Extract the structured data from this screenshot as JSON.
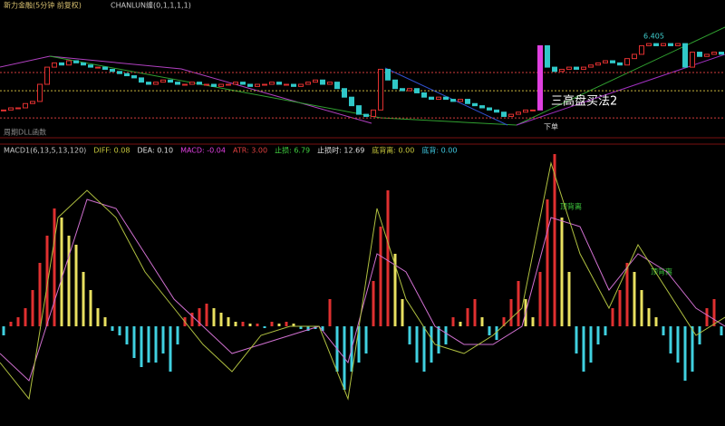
{
  "header": {
    "title": "新力金融(5分钟 前复权)",
    "indicator": "CHANLUN缠(0,1,1,1,1)"
  },
  "main_panel": {
    "price_range": [
      5.9,
      6.45
    ],
    "levels": [
      {
        "value": 6.175,
        "color": "#d23c3c"
      },
      {
        "value": 6.09,
        "color": "#c8b43c"
      },
      {
        "value": 5.963,
        "color": "#d23c3c"
      }
    ],
    "closes": [
      6.0,
      6.01,
      6.01,
      6.03,
      6.04,
      6.12,
      6.2,
      6.22,
      6.21,
      6.23,
      6.22,
      6.21,
      6.2,
      6.2,
      6.19,
      6.18,
      6.17,
      6.16,
      6.15,
      6.13,
      6.12,
      6.13,
      6.14,
      6.13,
      6.12,
      6.12,
      6.13,
      6.12,
      6.12,
      6.11,
      6.12,
      6.12,
      6.13,
      6.12,
      6.11,
      6.12,
      6.12,
      6.13,
      6.12,
      6.12,
      6.11,
      6.12,
      6.13,
      6.14,
      6.12,
      6.13,
      6.1,
      6.06,
      6.02,
      5.98,
      5.97,
      6.0,
      6.19,
      6.14,
      6.1,
      6.09,
      6.1,
      6.08,
      6.06,
      6.05,
      6.06,
      6.05,
      6.04,
      6.05,
      6.03,
      6.02,
      6.01,
      6.0,
      5.99,
      5.97,
      5.98,
      5.99,
      6.0,
      6.0,
      6.3,
      6.2,
      6.18,
      6.19,
      6.2,
      6.19,
      6.2,
      6.21,
      6.22,
      6.23,
      6.22,
      6.21,
      6.24,
      6.26,
      6.3,
      6.31,
      6.3,
      6.31,
      6.3,
      6.31,
      6.2,
      6.27,
      6.25,
      6.26,
      6.27,
      6.26
    ],
    "peak_label": "6.405",
    "signal_label": "三高盘买法2",
    "order_label": "下单",
    "footer": "周期DLL函数"
  },
  "macd_panel": {
    "legend": [
      {
        "text": "MACD1(6,13,5,13,120)",
        "color": "#c8c8c8"
      },
      {
        "text": "DIFF: 0.08",
        "color": "#c8c83c"
      },
      {
        "text": "DEA: 0.10",
        "color": "#e0e0e0"
      },
      {
        "text": "MACD: -0.04",
        "color": "#e040e0"
      },
      {
        "text": "ATR: 3.00",
        "color": "#e04040"
      },
      {
        "text": "止损: 6.79",
        "color": "#40d040"
      },
      {
        "text": "止损时: 12.69",
        "color": "#e0e0e0"
      },
      {
        "text": "底背离: 0.00",
        "color": "#c8c83c"
      },
      {
        "text": "底背: 0.00",
        "color": "#40c8e0"
      }
    ],
    "ylim": [
      -11,
      19.5
    ],
    "histogram": [
      -1,
      0.5,
      1,
      2,
      4,
      7,
      10,
      13,
      12,
      10,
      9,
      6,
      4,
      2,
      1,
      -0.5,
      -1,
      -2,
      -3.5,
      -4.5,
      -4,
      -4,
      -3,
      -5,
      -2,
      1,
      1.5,
      2,
      2.5,
      2,
      1.5,
      1,
      0.5,
      0.5,
      0.3,
      0.3,
      -0.2,
      0.5,
      0.3,
      0.5,
      0.3,
      -0.3,
      -0.5,
      -0.3,
      -0.5,
      3,
      -5,
      -7,
      -5,
      -4,
      -3,
      5,
      11,
      15,
      8,
      3,
      -2,
      -4,
      -5,
      -4,
      -3,
      -2,
      1,
      0.5,
      2,
      3,
      1,
      -1,
      -1.5,
      1,
      3,
      5,
      3,
      1,
      6,
      14,
      19,
      12,
      6,
      -3,
      -5,
      -4,
      -2,
      -1,
      2,
      4,
      7,
      6,
      4,
      2,
      1,
      -1,
      -3,
      -4,
      -6,
      -5,
      -2,
      2,
      3,
      -1
    ],
    "diff": [
      -4,
      -8,
      12,
      15,
      12,
      6,
      2,
      -2,
      -5,
      -1,
      0,
      0,
      -8,
      13,
      3,
      -2,
      -3,
      -1,
      2,
      18,
      8,
      2,
      9,
      4,
      -1,
      1
    ],
    "dea": [
      -3,
      -6,
      4,
      14,
      13,
      8,
      3,
      0,
      -3,
      -2,
      -1,
      0,
      -4,
      8,
      6,
      0,
      -2,
      -2,
      0,
      12,
      11,
      4,
      8,
      6,
      2,
      0
    ],
    "notes": [
      "顶背离",
      "顶背离"
    ]
  }
}
